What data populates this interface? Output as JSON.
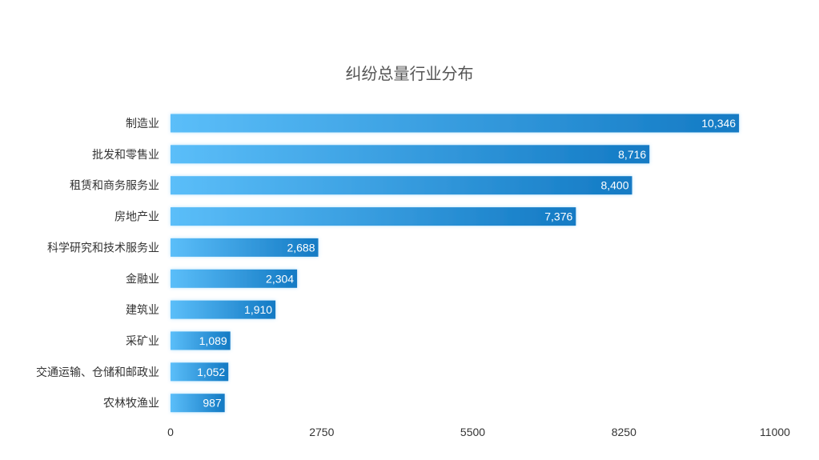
{
  "chart_data": {
    "type": "bar",
    "orientation": "horizontal",
    "title": "纠纷总量行业分布",
    "categories": [
      "制造业",
      "批发和零售业",
      "租赁和商务服务业",
      "房地产业",
      "科学研究和技术服务业",
      "金融业",
      "建筑业",
      "采矿业",
      "交通运输、仓储和邮政业",
      "农林牧渔业"
    ],
    "values": [
      10346,
      8716,
      8400,
      7376,
      2688,
      2304,
      1910,
      1089,
      1052,
      987
    ],
    "value_labels": [
      "10,346",
      "8,716",
      "8,400",
      "7,376",
      "2,688",
      "2,304",
      "1,910",
      "1,089",
      "1,052",
      "987"
    ],
    "x_ticks": [
      0,
      2750,
      5500,
      8250,
      11000
    ],
    "x_tick_labels": [
      "0",
      "2750",
      "5500",
      "8250",
      "11000"
    ],
    "xlim": [
      0,
      11000
    ],
    "grid": false,
    "legend": "none",
    "colors": {
      "bar_start": "#5bbef9",
      "bar_end": "#137ac4",
      "text": "#333333",
      "title": "#555555"
    }
  }
}
